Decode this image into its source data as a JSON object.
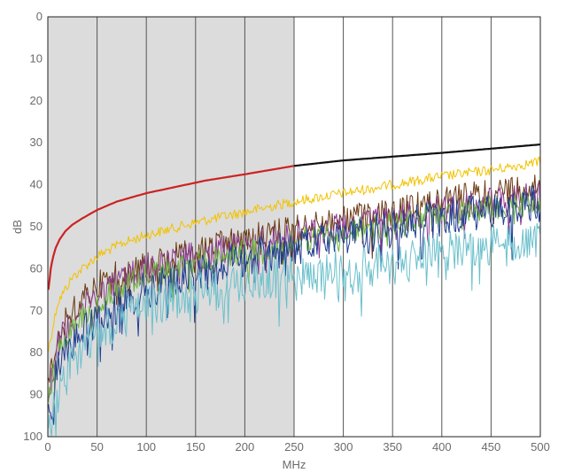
{
  "chart_data": {
    "type": "line",
    "xlabel": "MHz",
    "ylabel": "dB",
    "xlim": [
      0,
      500
    ],
    "ylim": [
      0,
      100
    ],
    "y_inverted": true,
    "x_ticks": [
      0,
      50,
      100,
      150,
      200,
      250,
      300,
      350,
      400,
      450,
      500
    ],
    "y_ticks": [
      0,
      10,
      20,
      30,
      40,
      50,
      60,
      70,
      80,
      90,
      100
    ],
    "grid": {
      "vertical": true,
      "horizontal": false
    },
    "shaded_region": {
      "x": [
        0,
        250
      ],
      "y": [
        0,
        100
      ],
      "color": "#dcdcdc"
    },
    "series": [
      {
        "color": "#cc2222",
        "x": [
          0.5,
          1,
          2,
          3,
          5,
          8,
          12,
          18,
          25,
          35,
          50,
          70,
          100,
          130,
          160,
          200,
          250
        ],
        "values": [
          65,
          65,
          62,
          60,
          57.5,
          55,
          53,
          51,
          49.5,
          48,
          46,
          44,
          42,
          40.5,
          39,
          37.5,
          35.5
        ]
      },
      {
        "color": "#111111",
        "x": [
          250,
          300,
          350,
          400,
          450,
          500
        ],
        "values": [
          35.5,
          34.2,
          33.3,
          32.4,
          31.4,
          30.4
        ]
      },
      {
        "color": "#f2c200",
        "x": [
          0,
          10,
          25,
          50,
          75,
          100,
          150,
          200,
          250,
          300,
          350,
          400,
          450,
          500
        ],
        "values": [
          80,
          68,
          62,
          57,
          54,
          52,
          49,
          46.5,
          44,
          42,
          40,
          38,
          36.5,
          34.5
        ]
      },
      {
        "color": "#6b3a14",
        "x": [
          0,
          10,
          25,
          50,
          75,
          100,
          150,
          200,
          250,
          300,
          350,
          400,
          450,
          500
        ],
        "values": [
          88,
          76,
          70,
          64,
          61,
          59,
          56,
          53,
          50.5,
          48.5,
          46.5,
          44,
          42,
          40
        ]
      },
      {
        "color": "#8a3a8f",
        "x": [
          0,
          10,
          25,
          50,
          75,
          100,
          150,
          200,
          250,
          300,
          350,
          400,
          450,
          500
        ],
        "values": [
          90,
          78,
          72,
          66,
          62.5,
          60,
          57,
          54.5,
          52,
          50,
          48,
          46,
          44,
          42.5
        ]
      },
      {
        "color": "#6db33f",
        "x": [
          0,
          10,
          25,
          50,
          75,
          100,
          150,
          200,
          250,
          300,
          350,
          400,
          450,
          500
        ],
        "values": [
          91,
          80,
          73,
          68,
          64,
          61.5,
          58.5,
          56,
          53.5,
          51.5,
          49.5,
          47,
          45.5,
          44
        ]
      },
      {
        "color": "#1f3d91",
        "x": [
          0,
          10,
          25,
          50,
          75,
          100,
          150,
          200,
          250,
          300,
          350,
          400,
          450,
          500
        ],
        "values": [
          97,
          84,
          77,
          72,
          68,
          65,
          61,
          57.5,
          55,
          53,
          50.5,
          48,
          46,
          44.5
        ]
      },
      {
        "color": "#6cc0cc",
        "x": [
          0,
          10,
          25,
          50,
          75,
          100,
          150,
          200,
          250,
          300,
          350,
          400,
          450,
          500
        ],
        "values": [
          99,
          90,
          82,
          76,
          72,
          69,
          66,
          63.5,
          61.5,
          60,
          58.5,
          56,
          54,
          52
        ]
      }
    ]
  }
}
